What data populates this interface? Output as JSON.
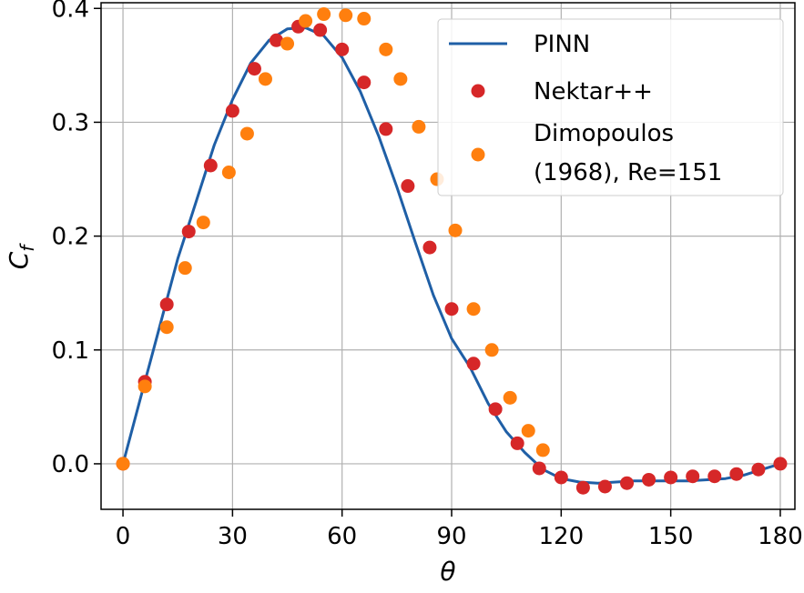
{
  "chart_data": {
    "type": "line",
    "xlabel": "θ",
    "ylabel": "C",
    "ylabel_subscript": "f",
    "xlim": [
      -6,
      184
    ],
    "ylim": [
      -0.04,
      0.405
    ],
    "xticks": [
      0,
      30,
      60,
      90,
      120,
      150,
      180
    ],
    "xtick_labels": [
      "0",
      "30",
      "60",
      "90",
      "120",
      "150",
      "180"
    ],
    "yticks": [
      0.0,
      0.1,
      0.2,
      0.3,
      0.4
    ],
    "ytick_labels": [
      "0.0",
      "0.1",
      "0.2",
      "0.3",
      "0.4"
    ],
    "grid": true,
    "legend_position": "top-right",
    "series": [
      {
        "name": "PINN",
        "kind": "line",
        "color": "#1f5fa6",
        "x": [
          0,
          5,
          10,
          15,
          20,
          25,
          30,
          35,
          40,
          45,
          50,
          55,
          60,
          65,
          70,
          75,
          80,
          85,
          90,
          95,
          100,
          105,
          110,
          115,
          120,
          125,
          130,
          135,
          140,
          145,
          150,
          155,
          160,
          165,
          170,
          175,
          180
        ],
        "y": [
          0.0,
          0.06,
          0.12,
          0.18,
          0.23,
          0.28,
          0.32,
          0.352,
          0.372,
          0.382,
          0.383,
          0.376,
          0.357,
          0.327,
          0.288,
          0.243,
          0.195,
          0.148,
          0.11,
          0.085,
          0.053,
          0.028,
          0.01,
          -0.005,
          -0.013,
          -0.016,
          -0.017,
          -0.016,
          -0.015,
          -0.015,
          -0.015,
          -0.015,
          -0.014,
          -0.013,
          -0.01,
          -0.005,
          0.0
        ]
      },
      {
        "name": "Nektar++",
        "kind": "scatter",
        "color": "#d62728",
        "x": [
          0,
          6,
          12,
          18,
          24,
          30,
          36,
          42,
          48,
          54,
          60,
          66,
          72,
          78,
          84,
          90,
          96,
          102,
          108,
          114,
          120,
          126,
          132,
          138,
          144,
          150,
          156,
          162,
          168,
          174,
          180
        ],
        "y": [
          0.0,
          0.072,
          0.14,
          0.204,
          0.262,
          0.31,
          0.347,
          0.372,
          0.384,
          0.381,
          0.364,
          0.335,
          0.294,
          0.244,
          0.19,
          0.136,
          0.088,
          0.048,
          0.018,
          -0.004,
          -0.012,
          -0.021,
          -0.02,
          -0.017,
          -0.014,
          -0.012,
          -0.011,
          -0.011,
          -0.009,
          -0.005,
          0.0
        ]
      },
      {
        "name": "Dimopoulos (1968), Re=151",
        "name_lines": [
          "Dimopoulos",
          "(1968), Re=151"
        ],
        "kind": "scatter",
        "color": "#ff7f0e",
        "x": [
          0,
          6,
          12,
          17,
          22,
          29,
          34,
          39,
          45,
          50,
          55,
          61,
          66,
          72,
          76,
          81,
          86,
          91,
          96,
          101,
          106,
          111,
          115
        ],
        "y": [
          0.0,
          0.068,
          0.12,
          0.172,
          0.212,
          0.256,
          0.29,
          0.338,
          0.369,
          0.389,
          0.395,
          0.394,
          0.391,
          0.364,
          0.338,
          0.296,
          0.25,
          0.205,
          0.136,
          0.1,
          0.058,
          0.029,
          0.012
        ]
      }
    ]
  }
}
